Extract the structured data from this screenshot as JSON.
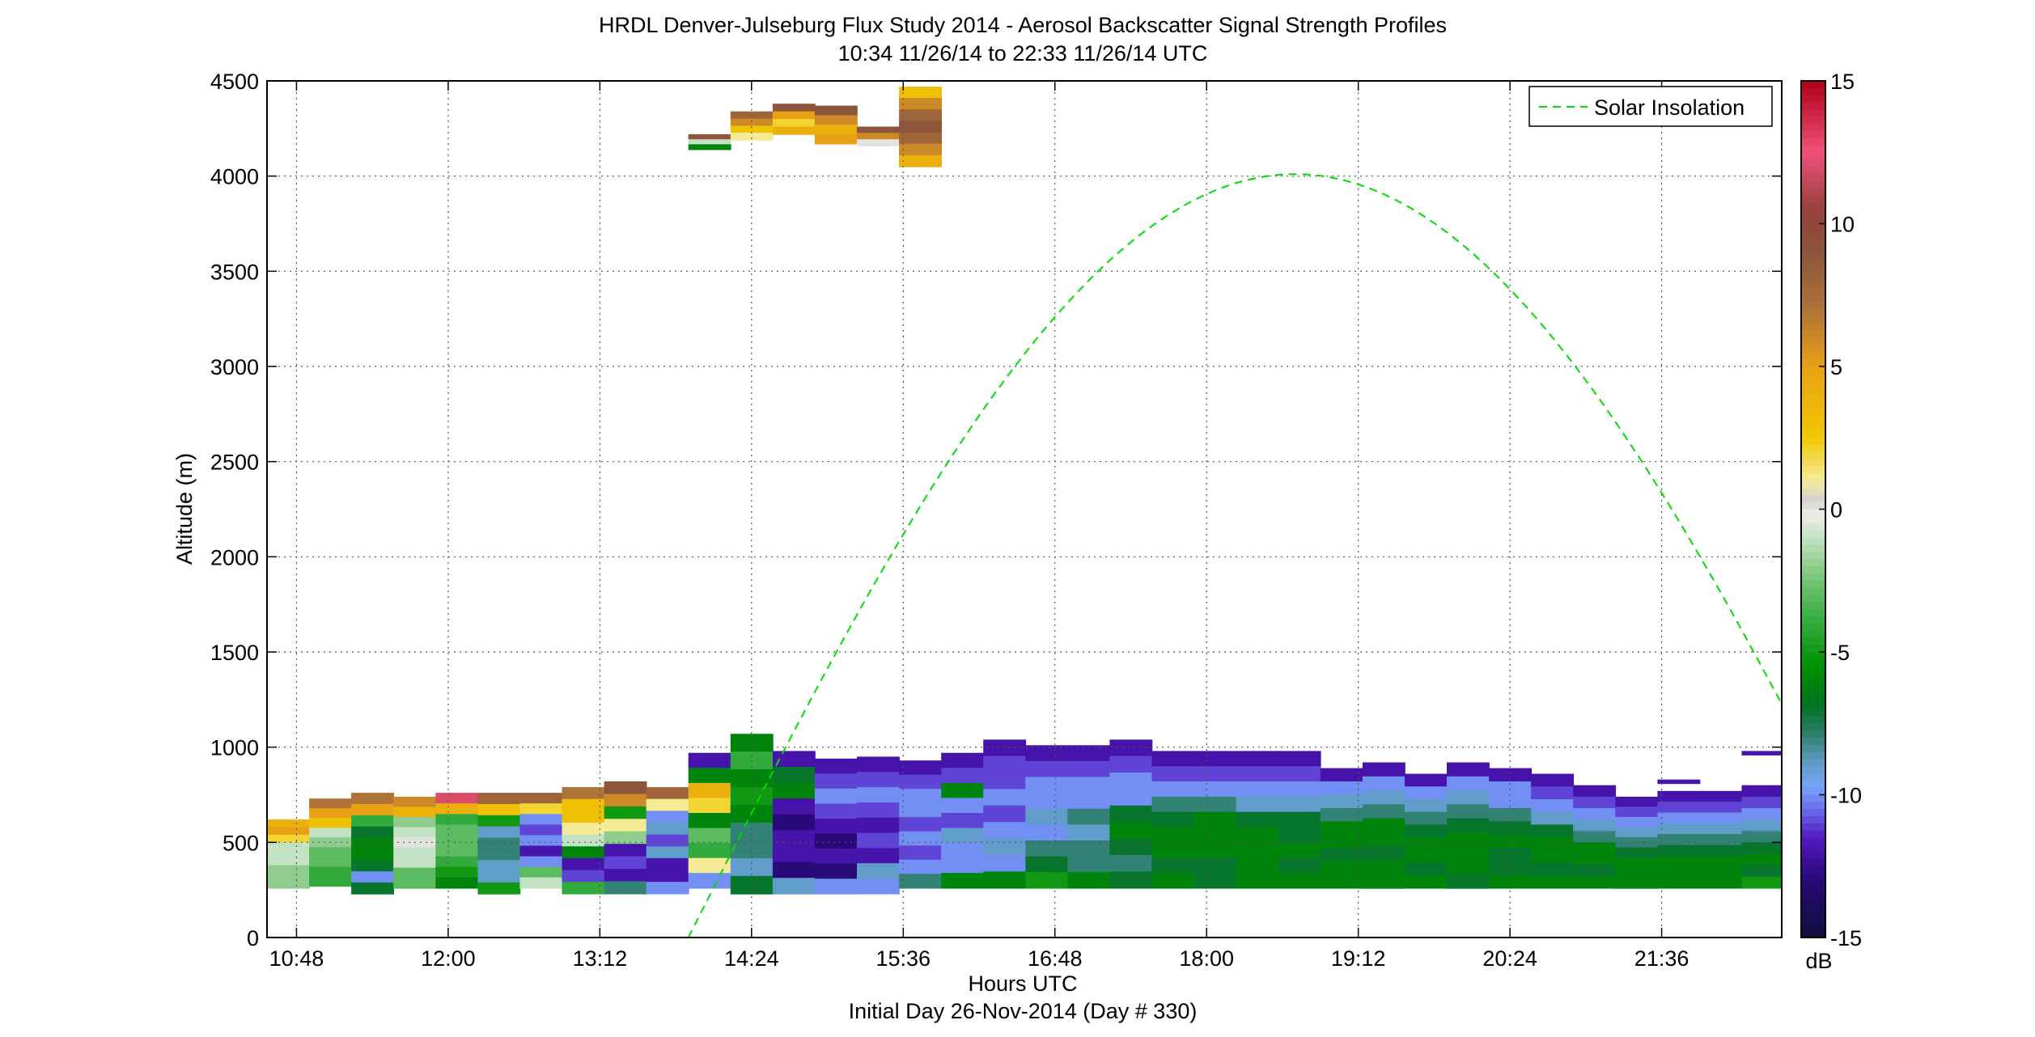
{
  "chart_data": {
    "type": "heatmap",
    "title": "HRDL Denver-Julseburg Flux Study 2014 - Aerosol Backscatter Signal Strength Profiles",
    "subtitle": "10:34 11/26/14 to 22:33 11/26/14  UTC",
    "xlabel": "Hours UTC",
    "xlabel2": "Initial Day 26-Nov-2014 (Day # 330)",
    "ylabel": "Altitude (m)",
    "xlim_hours": [
      10.5667,
      22.55
    ],
    "x_ticks": [
      {
        "h": 10.8,
        "label": "10:48"
      },
      {
        "h": 12.0,
        "label": "12:00"
      },
      {
        "h": 13.2,
        "label": "13:12"
      },
      {
        "h": 14.4,
        "label": "14:24"
      },
      {
        "h": 15.6,
        "label": "15:36"
      },
      {
        "h": 16.8,
        "label": "16:48"
      },
      {
        "h": 18.0,
        "label": "18:00"
      },
      {
        "h": 19.2,
        "label": "19:12"
      },
      {
        "h": 20.4,
        "label": "20:24"
      },
      {
        "h": 21.6,
        "label": "21:36"
      }
    ],
    "ylim": [
      0,
      4500
    ],
    "y_ticks": [
      0,
      500,
      1000,
      1500,
      2000,
      2500,
      3000,
      3500,
      4000,
      4500
    ],
    "grid": true,
    "legend": {
      "position": "top-right",
      "entries": [
        "Solar Insolation"
      ]
    },
    "series_style": {
      "Solar Insolation": {
        "color": "#00dd00",
        "dash": true
      }
    },
    "colorbar": {
      "label": "dB",
      "range": [
        -15,
        15
      ],
      "ticks": [
        -15,
        -10,
        -5,
        0,
        5,
        10,
        15
      ]
    },
    "solar_insolation": {
      "name": "Solar Insolation",
      "start_hour": 13.9,
      "peak_hour": 18.7,
      "peak_altitude": 4010
    },
    "profiles_lower": [
      {
        "h": 10.5667,
        "top": 620,
        "bottom": 260,
        "dB": [
          4,
          5,
          2,
          -1,
          -1,
          -1,
          -2,
          -2,
          -2
        ]
      },
      {
        "h": 10.9,
        "top": 730,
        "bottom": 270,
        "dB": [
          7,
          5,
          3,
          -1,
          -2,
          -3,
          -3,
          -4,
          -4
        ]
      },
      {
        "h": 11.2333,
        "top": 760,
        "bottom": 230,
        "dB": [
          7,
          5,
          -4,
          -7,
          -6,
          -6,
          -7,
          -10,
          -7
        ]
      },
      {
        "h": 11.5667,
        "top": 740,
        "bottom": 260,
        "dB": [
          6,
          4,
          -2,
          -1,
          0,
          -1,
          -1,
          -3,
          -3
        ]
      },
      {
        "h": 11.9,
        "top": 760,
        "bottom": 260,
        "dB": [
          12,
          4,
          -4,
          -3,
          -3,
          -3,
          -4,
          -5,
          -6
        ]
      },
      {
        "h": 12.2333,
        "top": 760,
        "bottom": 230,
        "dB": [
          8,
          3,
          -5,
          -9,
          -8,
          -8,
          -9,
          -9,
          -5
        ]
      },
      {
        "h": 12.5667,
        "top": 760,
        "bottom": 260,
        "dB": [
          8,
          2,
          -10,
          -11,
          -10,
          -12,
          -10,
          -3,
          -1
        ]
      },
      {
        "h": 12.9,
        "top": 790,
        "bottom": 230,
        "dB": [
          7,
          3,
          3,
          1,
          -1,
          -6,
          -12,
          -11,
          -4
        ]
      },
      {
        "h": 13.2333,
        "top": 820,
        "bottom": 230,
        "dB": [
          9,
          6,
          -5,
          1,
          -2,
          -12,
          -11,
          -12,
          -8
        ]
      },
      {
        "h": 13.5667,
        "top": 790,
        "bottom": 230,
        "dB": [
          8,
          1,
          -10,
          -9,
          -11,
          -9,
          -12,
          -12,
          -10
        ]
      },
      {
        "h": 13.9,
        "top": 970,
        "bottom": 260,
        "dB": [
          -12,
          -6,
          4,
          2,
          -6,
          -3,
          -4,
          1,
          -10
        ]
      },
      {
        "h": 14.2333,
        "top": 1070,
        "bottom": 230,
        "dB": [
          -6,
          -4,
          -6,
          -5,
          -6,
          -8,
          -8,
          -9,
          -7
        ]
      },
      {
        "h": 14.5667,
        "top": 980,
        "bottom": 230,
        "dB": [
          -12,
          -7,
          -6,
          -12,
          -13,
          -12,
          -12,
          -13,
          -9
        ]
      },
      {
        "h": 14.9,
        "top": 940,
        "bottom": 230,
        "dB": [
          -12,
          -11,
          -10,
          -11,
          -12,
          -13,
          -12,
          -13,
          -10
        ]
      },
      {
        "h": 15.2333,
        "top": 950,
        "bottom": 230,
        "dB": [
          -12,
          -11,
          -10,
          -11,
          -12,
          -11,
          -12,
          -9,
          -10
        ]
      },
      {
        "h": 15.5667,
        "top": 930,
        "bottom": 260,
        "dB": [
          -12,
          -11,
          -10,
          -10,
          -11,
          -10,
          -11,
          -10,
          -8
        ]
      },
      {
        "h": 15.9,
        "top": 970,
        "bottom": 260,
        "dB": [
          -12,
          -11,
          -6,
          -10,
          -11,
          -9,
          -10,
          -10,
          -6
        ]
      },
      {
        "h": 16.2333,
        "top": 1040,
        "bottom": 260,
        "dB": [
          -12,
          -11,
          -11,
          -10,
          -11,
          -10,
          -9,
          -10,
          -6
        ]
      },
      {
        "h": 16.5667,
        "top": 1010,
        "bottom": 260,
        "dB": [
          -12,
          -11,
          -10,
          -10,
          -9,
          -10,
          -8,
          -7,
          -5
        ]
      },
      {
        "h": 16.9,
        "top": 1010,
        "bottom": 260,
        "dB": [
          -12,
          -11,
          -10,
          -10,
          -8,
          -9,
          -8,
          -8,
          -6
        ]
      },
      {
        "h": 17.2333,
        "top": 1040,
        "bottom": 260,
        "dB": [
          -12,
          -11,
          -10,
          -10,
          -7,
          -6,
          -7,
          -8,
          -7
        ]
      },
      {
        "h": 17.5667,
        "top": 980,
        "bottom": 260,
        "dB": [
          -12,
          -11,
          -10,
          -8,
          -7,
          -6,
          -6,
          -7,
          -6
        ]
      },
      {
        "h": 17.9,
        "top": 980,
        "bottom": 260,
        "dB": [
          -12,
          -11,
          -10,
          -8,
          -6,
          -6,
          -6,
          -7,
          -7
        ]
      },
      {
        "h": 18.2333,
        "top": 980,
        "bottom": 260,
        "dB": [
          -12,
          -11,
          -10,
          -9,
          -7,
          -6,
          -6,
          -6,
          -6
        ]
      },
      {
        "h": 18.5667,
        "top": 980,
        "bottom": 260,
        "dB": [
          -12,
          -11,
          -10,
          -9,
          -7,
          -7,
          -6,
          -7,
          -6
        ]
      },
      {
        "h": 18.9,
        "top": 890,
        "bottom": 260,
        "dB": [
          -12,
          -10,
          -9,
          -8,
          -6,
          -6,
          -7,
          -6,
          -6
        ]
      },
      {
        "h": 19.2333,
        "top": 920,
        "bottom": 260,
        "dB": [
          -12,
          -10,
          -9,
          -8,
          -6,
          -6,
          -7,
          -6,
          -6
        ]
      },
      {
        "h": 19.5667,
        "top": 860,
        "bottom": 260,
        "dB": [
          -12,
          -10,
          -9,
          -8,
          -7,
          -6,
          -6,
          -7,
          -6
        ]
      },
      {
        "h": 19.9,
        "top": 920,
        "bottom": 260,
        "dB": [
          -12,
          -10,
          -9,
          -8,
          -7,
          -6,
          -6,
          -6,
          -7
        ]
      },
      {
        "h": 20.2333,
        "top": 890,
        "bottom": 260,
        "dB": [
          -12,
          -10,
          -10,
          -8,
          -7,
          -6,
          -7,
          -7,
          -6
        ]
      },
      {
        "h": 20.5667,
        "top": 860,
        "bottom": 260,
        "dB": [
          -12,
          -11,
          -10,
          -9,
          -7,
          -6,
          -6,
          -7,
          -6
        ]
      },
      {
        "h": 20.9,
        "top": 800,
        "bottom": 260,
        "dB": [
          -12,
          -11,
          -10,
          -9,
          -8,
          -6,
          -6,
          -7,
          -6
        ]
      },
      {
        "h": 21.2333,
        "top": 740,
        "bottom": 260,
        "dB": [
          -12,
          -11,
          -10,
          -9,
          -8,
          -7,
          -6,
          -6,
          -6
        ]
      },
      {
        "h": 21.5667,
        "top": 770,
        "bottom": 260,
        "dB": [
          -12,
          -11,
          -10,
          -9,
          -8,
          -7,
          -6,
          -6,
          -6
        ]
      },
      {
        "h": 21.9,
        "top": 770,
        "bottom": 260,
        "dB": [
          -12,
          -11,
          -10,
          -9,
          -8,
          -7,
          -6,
          -6,
          -6
        ]
      },
      {
        "h": 22.2333,
        "top": 800,
        "bottom": 260,
        "dB": [
          -12,
          -11,
          -10,
          -9,
          -8,
          -7,
          -6,
          -7,
          -5
        ]
      }
    ],
    "profiles_upper": [
      {
        "h": 13.9,
        "top": 4220,
        "bottom": 4140,
        "dB": [
          9,
          -1,
          -6
        ]
      },
      {
        "h": 14.2333,
        "top": 4340,
        "bottom": 4190,
        "dB": [
          8,
          6,
          3,
          1
        ]
      },
      {
        "h": 14.5667,
        "top": 4380,
        "bottom": 4220,
        "dB": [
          9,
          5,
          2,
          4
        ]
      },
      {
        "h": 14.9,
        "top": 4370,
        "bottom": 4170,
        "dB": [
          9,
          6,
          4,
          5
        ]
      },
      {
        "h": 15.2333,
        "top": 4260,
        "bottom": 4160,
        "dB": [
          9,
          6,
          0
        ]
      },
      {
        "h": 15.5667,
        "top": 4470,
        "bottom": 4050,
        "dB": [
          3,
          6,
          8,
          9,
          8,
          6,
          4
        ]
      }
    ],
    "profiles_extra": [
      {
        "h": 21.5667,
        "top": 830,
        "bottom": 810,
        "dB": [
          -12
        ]
      },
      {
        "h": 22.2333,
        "top": 980,
        "bottom": 960,
        "dB": [
          -12
        ]
      }
    ]
  }
}
